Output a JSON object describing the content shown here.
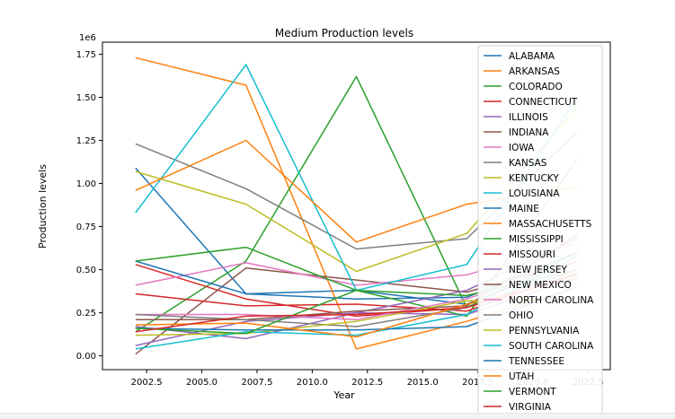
{
  "chart_data": {
    "type": "line",
    "title": "Medium Production levels",
    "xlabel": "Year",
    "ylabel": "Production levels",
    "y_multiplier_label": "1e6",
    "xlim": [
      2000.5,
      2023.5
    ],
    "ylim": [
      -0.08,
      1.82
    ],
    "x_ticks": [
      2002.5,
      2005.0,
      2007.5,
      2010.0,
      2012.5,
      2015.0,
      2017.5,
      2020.0,
      2022.5
    ],
    "x_tick_labels": [
      "2002.5",
      "2005.0",
      "2007.5",
      "2010.0",
      "2012.5",
      "2015.0",
      "2017.5",
      "2020.0",
      "2022.5"
    ],
    "y_ticks": [
      0.0,
      0.25,
      0.5,
      0.75,
      1.0,
      1.25,
      1.5,
      1.75
    ],
    "y_tick_labels": [
      "0.00",
      "0.25",
      "0.50",
      "0.75",
      "1.00",
      "1.25",
      "1.50",
      "1.75"
    ],
    "grid": false,
    "legend_position": "upper-right",
    "x": [
      2002,
      2007,
      2012,
      2017,
      2022
    ],
    "series": [
      {
        "name": "ALABAMA",
        "color": "#1f77b4",
        "values": [
          1.09,
          0.36,
          0.38,
          0.3,
          0.55
        ]
      },
      {
        "name": "ARKANSAS",
        "color": "#ff7f0e",
        "values": [
          1.73,
          1.57,
          0.04,
          0.2,
          0.4
        ]
      },
      {
        "name": "COLORADO",
        "color": "#2ca02c",
        "values": [
          0.14,
          0.55,
          1.62,
          0.28,
          0.6
        ]
      },
      {
        "name": "CONNECTICUT",
        "color": "#d62728",
        "values": [
          0.53,
          0.33,
          0.23,
          0.28,
          0.5
        ]
      },
      {
        "name": "ILLINOIS",
        "color": "#9467bd",
        "values": [
          0.17,
          0.1,
          0.25,
          0.24,
          0.45
        ]
      },
      {
        "name": "INDIANA",
        "color": "#8c564b",
        "values": [
          0.01,
          0.51,
          0.44,
          0.37,
          0.55
        ]
      },
      {
        "name": "IOWA",
        "color": "#e377c2",
        "values": [
          0.41,
          0.54,
          0.41,
          0.47,
          0.65
        ]
      },
      {
        "name": "KANSAS",
        "color": "#7f7f7f",
        "values": [
          1.23,
          0.97,
          0.62,
          0.68,
          1.3
        ]
      },
      {
        "name": "KENTUCKY",
        "color": "#bcbd22",
        "values": [
          1.07,
          0.88,
          0.49,
          0.71,
          1.44
        ]
      },
      {
        "name": "LOUISIANA",
        "color": "#17becf",
        "values": [
          0.83,
          1.69,
          0.38,
          0.53,
          1.5
        ]
      },
      {
        "name": "MAINE",
        "color": "#1f77b4",
        "values": [
          0.55,
          0.36,
          0.33,
          0.34,
          0.6
        ]
      },
      {
        "name": "MASSACHUSETTS",
        "color": "#ff7f0e",
        "values": [
          0.96,
          1.25,
          0.66,
          0.88,
          0.98
        ]
      },
      {
        "name": "MISSISSIPPI",
        "color": "#2ca02c",
        "values": [
          0.55,
          0.63,
          0.38,
          0.23,
          1.14
        ]
      },
      {
        "name": "MISSOURI",
        "color": "#d62728",
        "values": [
          0.36,
          0.29,
          0.3,
          0.26,
          0.48
        ]
      },
      {
        "name": "NEW JERSEY",
        "color": "#9467bd",
        "values": [
          0.06,
          0.2,
          0.25,
          0.38,
          0.68
        ]
      },
      {
        "name": "NEW MEXICO",
        "color": "#8c564b",
        "values": [
          0.21,
          0.21,
          0.26,
          0.29,
          0.7
        ]
      },
      {
        "name": "NORTH CAROLINA",
        "color": "#e377c2",
        "values": [
          0.24,
          0.24,
          0.21,
          0.33,
          0.55
        ]
      },
      {
        "name": "OHIO",
        "color": "#7f7f7f",
        "values": [
          0.24,
          0.21,
          0.17,
          0.28,
          0.5
        ]
      },
      {
        "name": "PENNSYLVANIA",
        "color": "#bcbd22",
        "values": [
          0.12,
          0.13,
          0.2,
          0.32,
          0.33
        ]
      },
      {
        "name": "SOUTH CAROLINA",
        "color": "#17becf",
        "values": [
          0.04,
          0.14,
          0.12,
          0.24,
          0.58
        ]
      },
      {
        "name": "TENNESSEE",
        "color": "#1f77b4",
        "values": [
          0.16,
          0.15,
          0.15,
          0.17,
          0.4
        ]
      },
      {
        "name": "UTAH",
        "color": "#ff7f0e",
        "values": [
          0.18,
          0.19,
          0.11,
          0.3,
          0.45
        ]
      },
      {
        "name": "VERMONT",
        "color": "#2ca02c",
        "values": [
          0.16,
          0.13,
          0.38,
          0.35,
          0.5
        ]
      },
      {
        "name": "VIRGINIA",
        "color": "#d62728",
        "values": [
          0.14,
          0.23,
          0.24,
          0.28,
          0.47
        ]
      }
    ]
  }
}
